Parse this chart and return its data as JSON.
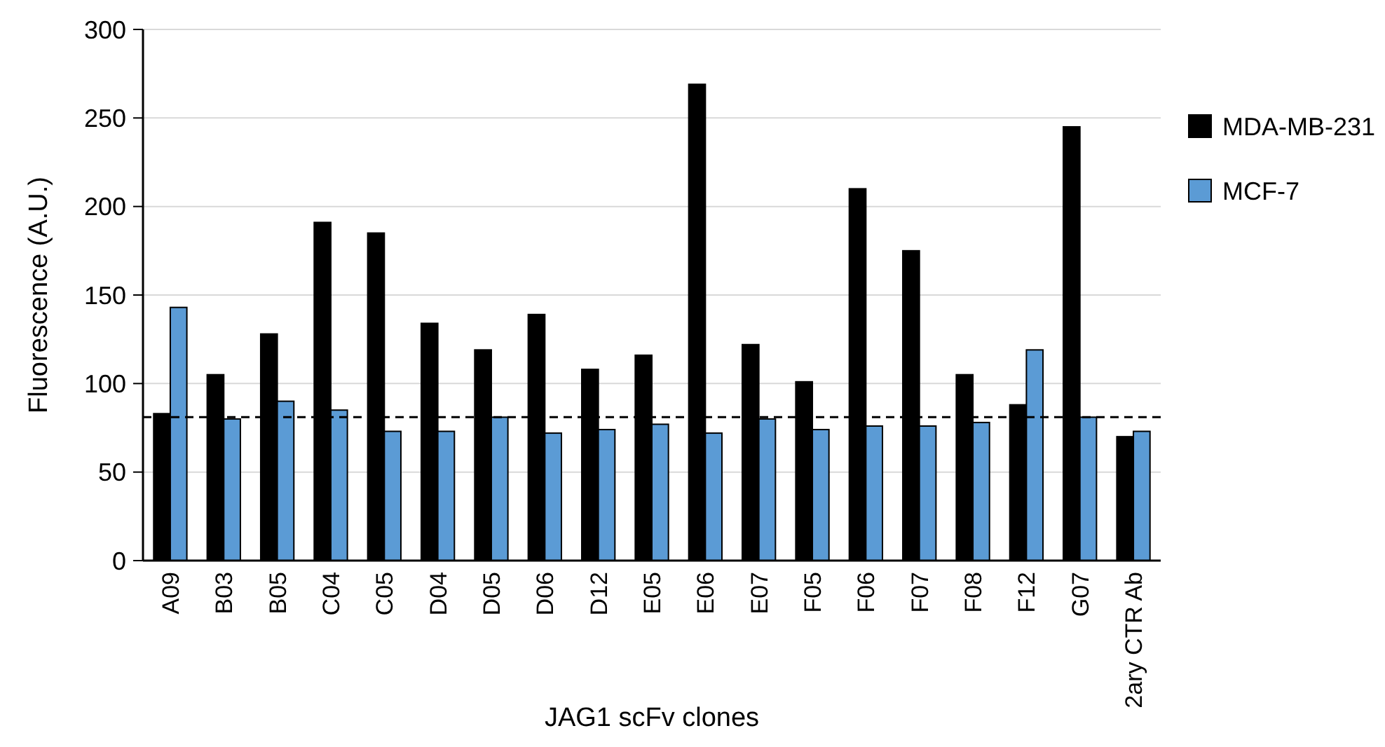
{
  "chart_data": {
    "type": "bar",
    "xlabel": "JAG1 scFv clones",
    "ylabel": "Fluorescence (A.U.)",
    "categories": [
      "A09",
      "B03",
      "B05",
      "C04",
      "C05",
      "D04",
      "D05",
      "D06",
      "D12",
      "E05",
      "E06",
      "E07",
      "F05",
      "F06",
      "F07",
      "F08",
      "F12",
      "G07",
      "2ary CTR Ab"
    ],
    "series": [
      {
        "name": "MDA-MB-231",
        "color": "#000000",
        "values": [
          83,
          105,
          128,
          191,
          185,
          134,
          119,
          139,
          108,
          116,
          269,
          122,
          101,
          210,
          175,
          105,
          88,
          245,
          70
        ]
      },
      {
        "name": "MCF-7",
        "color": "#5b9bd5",
        "values": [
          143,
          80,
          90,
          85,
          73,
          73,
          81,
          72,
          74,
          77,
          72,
          80,
          74,
          76,
          76,
          78,
          119,
          81,
          73
        ]
      }
    ],
    "ylim": [
      0,
      300
    ],
    "yticks": [
      0,
      50,
      100,
      150,
      200,
      250,
      300
    ],
    "grid": "y",
    "legend": "right",
    "ref_lines": [
      {
        "axis": "y",
        "value": 81,
        "line_style": "dashed",
        "color": "#000000"
      }
    ]
  }
}
